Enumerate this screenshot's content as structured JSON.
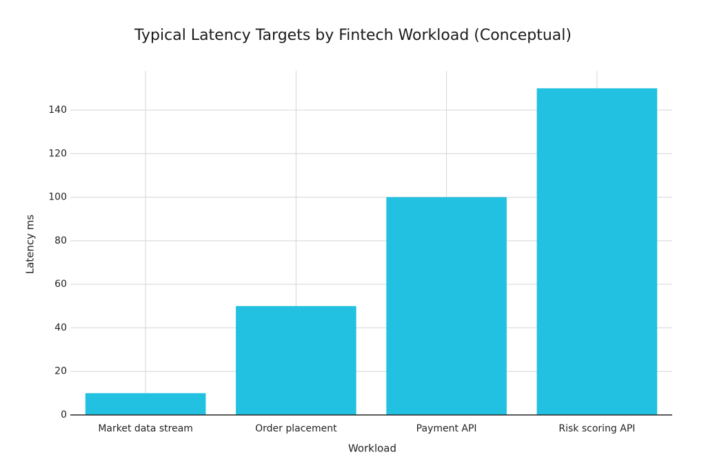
{
  "chart_data": {
    "type": "bar",
    "title": "Typical Latency Targets by Fintech Workload (Conceptual)",
    "x_label": "Workload",
    "y_label": "Latency ms",
    "categories": [
      "Market data stream",
      "Order placement",
      "Payment API",
      "Risk scoring API"
    ],
    "values": [
      10,
      50,
      100,
      150
    ],
    "color": "#22c1e1",
    "ylim": [
      0,
      158
    ],
    "yticks": [
      0,
      20,
      40,
      60,
      80,
      100,
      120,
      140
    ],
    "grid": true
  }
}
